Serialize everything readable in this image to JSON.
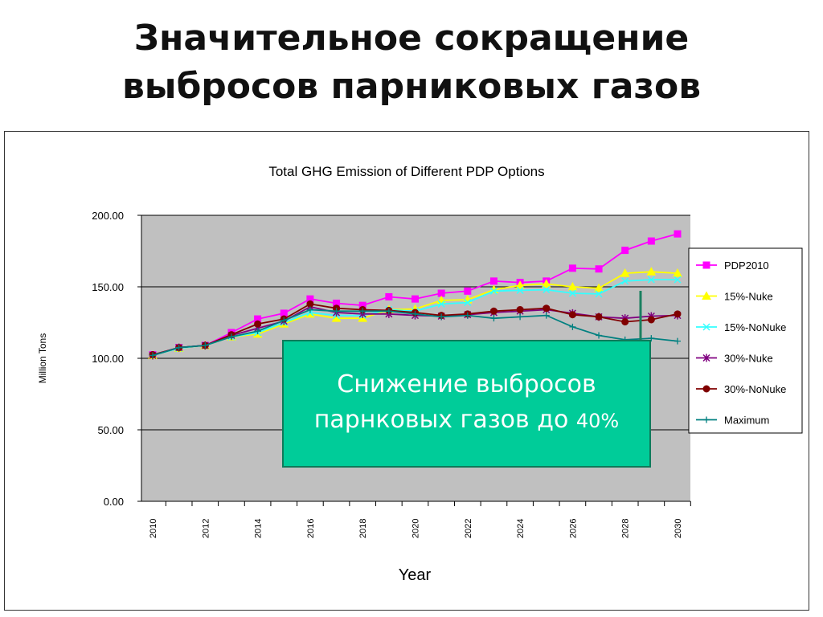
{
  "slide": {
    "title_line1": "Значительное сокращение",
    "title_line2": "выбросов парниковых газов"
  },
  "callout": {
    "text_line1": "Снижение выбросов",
    "text_line2": "парнковых газов до",
    "percent": "40%"
  },
  "chart_data": {
    "type": "line",
    "title": "Total GHG Emission of Different PDP Options",
    "xlabel": "Year",
    "ylabel": "Million Tons",
    "ylim": [
      0,
      200
    ],
    "yticks": [
      "0.00",
      "50.00",
      "100.00",
      "150.00",
      "200.00"
    ],
    "x": [
      2010,
      2011,
      2012,
      2013,
      2014,
      2015,
      2016,
      2017,
      2018,
      2019,
      2020,
      2021,
      2022,
      2023,
      2024,
      2025,
      2026,
      2027,
      2028,
      2029,
      2030
    ],
    "xtick_labels": [
      "2010",
      "2012",
      "2014",
      "2016",
      "2018",
      "2020",
      "2022",
      "2024",
      "2026",
      "2028",
      "2030"
    ],
    "grid": "horizontal",
    "plot_background": "#c0c0c0",
    "legend_position": "right",
    "series": [
      {
        "name": "PDP2010",
        "color": "#ff00ff",
        "marker": "square",
        "values": [
          102.5,
          107.5,
          109,
          118,
          127.5,
          131.5,
          141.5,
          138.5,
          137,
          143,
          141.5,
          145.5,
          147,
          154,
          153,
          154,
          163,
          162.5,
          175.5,
          182,
          187
        ]
      },
      {
        "name": "15%-Nuke",
        "color": "#ffff00",
        "marker": "triangle",
        "values": [
          102,
          107,
          109,
          115,
          117,
          124,
          131,
          128,
          128,
          134,
          134.5,
          140.5,
          141,
          148,
          151,
          152,
          150,
          149,
          159.5,
          160.5,
          159.5
        ]
      },
      {
        "name": "15%-NoNuke",
        "color": "#33ffff",
        "marker": "x",
        "values": [
          102,
          107,
          109,
          115,
          118,
          125,
          132,
          130,
          130,
          134,
          133,
          138,
          139,
          147,
          147.5,
          148,
          145.5,
          145,
          154,
          155,
          155
        ]
      },
      {
        "name": "30%-Nuke",
        "color": "#800080",
        "marker": "star",
        "values": [
          102,
          107.5,
          109,
          116,
          121,
          126,
          136,
          132,
          131,
          131,
          130,
          129.5,
          130.5,
          132,
          133,
          134,
          131.5,
          129,
          128,
          129.5,
          130
        ]
      },
      {
        "name": "30%-NoNuke",
        "color": "#800000",
        "marker": "circle",
        "values": [
          102.5,
          107.5,
          109,
          116.5,
          124,
          127.5,
          138,
          135,
          134,
          133.5,
          132,
          130,
          131,
          133,
          134,
          135,
          130.5,
          129,
          125.5,
          127,
          131
        ]
      },
      {
        "name": "Maximum",
        "color": "#008080",
        "marker": "plus",
        "values": [
          102,
          107.5,
          109,
          115,
          119,
          126.5,
          134,
          133,
          133,
          133,
          131,
          129,
          130,
          128,
          129,
          130,
          122,
          116,
          113,
          114,
          112
        ]
      }
    ]
  }
}
